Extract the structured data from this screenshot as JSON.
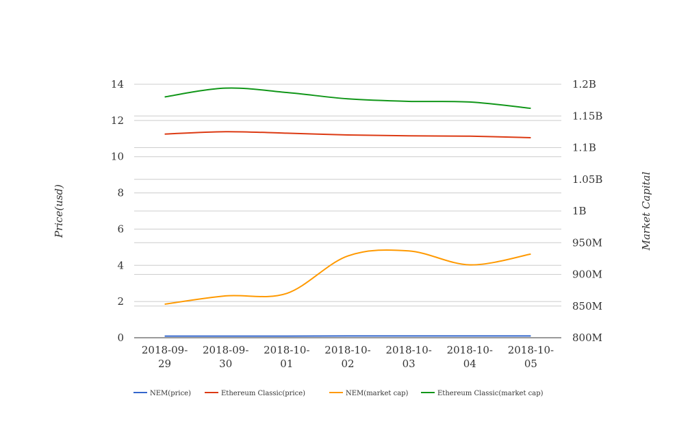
{
  "chart_data": {
    "type": "line",
    "categories": [
      "2018-09-29",
      "2018-09-30",
      "2018-10-01",
      "2018-10-02",
      "2018-10-03",
      "2018-10-04",
      "2018-10-05"
    ],
    "category_lines": [
      [
        "2018-09-",
        "29"
      ],
      [
        "2018-09-",
        "30"
      ],
      [
        "2018-10-",
        "01"
      ],
      [
        "2018-10-",
        "02"
      ],
      [
        "2018-10-",
        "03"
      ],
      [
        "2018-10-",
        "04"
      ],
      [
        "2018-10-",
        "05"
      ]
    ],
    "y_left": {
      "label": "Price(usd)",
      "min": 0,
      "max": 14,
      "ticks": [
        0,
        2,
        4,
        6,
        8,
        10,
        12,
        14
      ],
      "tick_labels": [
        "0",
        "2",
        "4",
        "6",
        "8",
        "10",
        "12",
        "14"
      ]
    },
    "y_right": {
      "label": "Market Capital",
      "min": 800000000,
      "max": 1200000000,
      "ticks": [
        800000000,
        850000000,
        900000000,
        950000000,
        1000000000,
        1050000000,
        1100000000,
        1150000000,
        1200000000
      ],
      "tick_labels": [
        "800M",
        "850M",
        "900M",
        "950M",
        "1B",
        "1.05B",
        "1.1B",
        "1.15B",
        "1.2B"
      ]
    },
    "series": [
      {
        "name": "NEM(price)",
        "axis": "left",
        "color": "#3366cc",
        "values": [
          0.09,
          0.09,
          0.09,
          0.1,
          0.1,
          0.1,
          0.1
        ]
      },
      {
        "name": "Ethereum Classic(price)",
        "axis": "left",
        "color": "#dc3912",
        "values": [
          11.25,
          11.38,
          11.3,
          11.2,
          11.15,
          11.13,
          11.05
        ]
      },
      {
        "name": "NEM(market cap)",
        "axis": "right",
        "color": "#ff9900",
        "values": [
          853000000,
          866000000,
          870000000,
          929000000,
          937000000,
          915000000,
          932000000
        ]
      },
      {
        "name": "Ethereum Classic(market cap)",
        "axis": "right",
        "color": "#109618",
        "values": [
          1180000000,
          1194000000,
          1187000000,
          1177000000,
          1173000000,
          1172000000,
          1162000000
        ]
      }
    ],
    "grid": true,
    "legend_position": "bottom"
  }
}
